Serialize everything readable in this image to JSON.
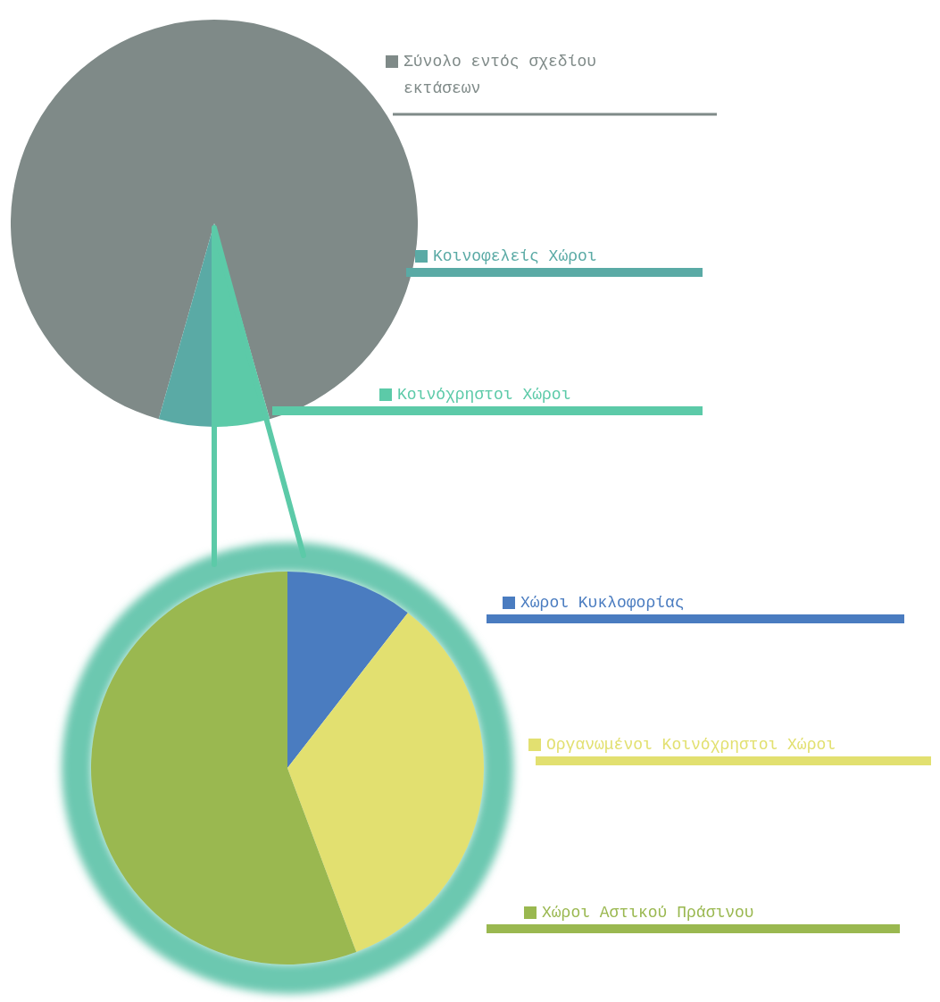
{
  "chart_data": [
    {
      "type": "pie",
      "categories": [
        "Σύνολο εντός σχεδίου εκτάσεων",
        "Κοινοφελείς Χώροι",
        "Κοινόχρηστοι Χώροι"
      ],
      "values": [
        91.2,
        4.6,
        4.2
      ],
      "colors": [
        "#7f8a88",
        "#5aaaa5",
        "#5ccaa8"
      ],
      "legend": "right"
    },
    {
      "type": "pie",
      "categories": [
        "Χώροι Κυκλοφορίας",
        "Οργανωμένοι Κοινόχρηστοι Χώροι",
        "Χώροι Αστικού Πράσινου"
      ],
      "values": [
        10.5,
        33.8,
        55.7
      ],
      "colors": [
        "#4a7cc0",
        "#e2e070",
        "#9ab850"
      ],
      "legend": "right"
    }
  ]
}
